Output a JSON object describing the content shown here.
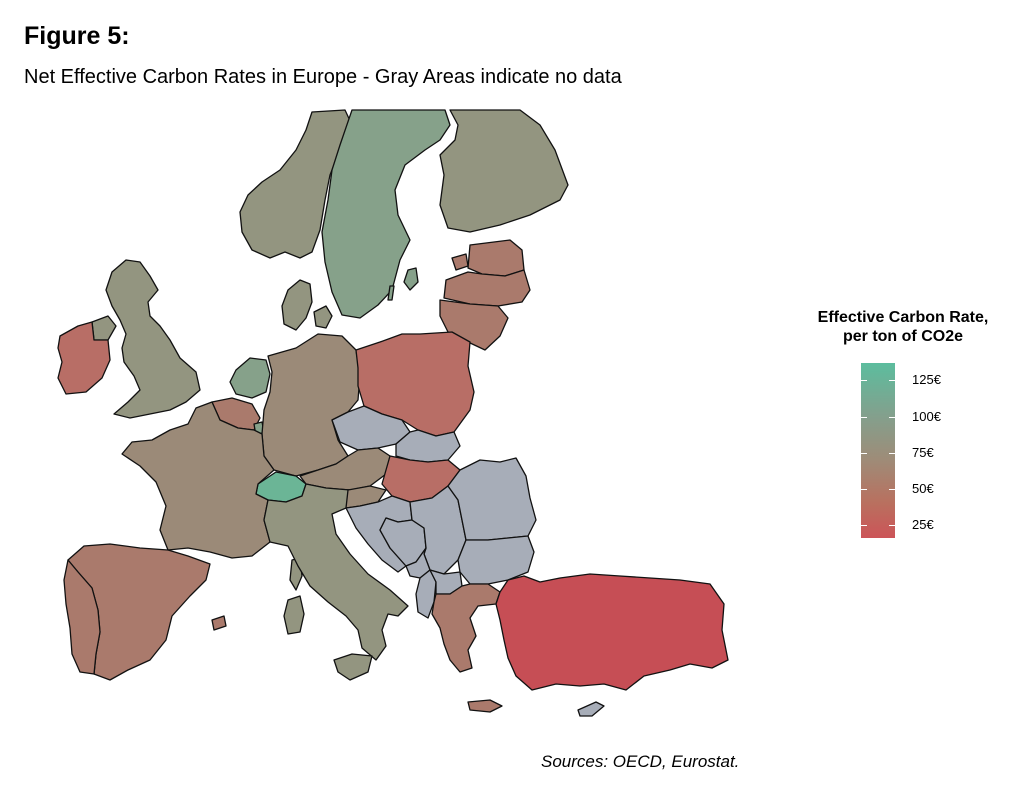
{
  "figure": {
    "title": "Figure 5:",
    "subtitle": "Net Effective Carbon Rates in Europe - Gray Areas indicate no data",
    "source": "Sources: OECD, Eurostat."
  },
  "legend": {
    "title_line1": "Effective Carbon Rate,",
    "title_line2": "per ton of CO2e",
    "ticks": [
      {
        "label": "125€",
        "value": 125
      },
      {
        "label": "100€",
        "value": 100
      },
      {
        "label": "75€",
        "value": 75
      },
      {
        "label": "50€",
        "value": 50
      },
      {
        "label": "25€",
        "value": 25
      }
    ],
    "scale_colors": {
      "high": "#5cbd9e",
      "mid_high": "#83a08d",
      "mid": "#9e8c78",
      "mid_low": "#b9705f",
      "low": "#cc5458"
    },
    "no_data_color": "#a7adb8"
  },
  "colors": {
    "teal": "#6bb596",
    "green_gray": "#86a18a",
    "olive_gray": "#939580",
    "taupe": "#9b8a78",
    "rose_brown": "#aa7a6c",
    "dusty_red": "#b86e66",
    "red": "#c64e55",
    "gray": "#a7adb8"
  },
  "map_regions": [
    {
      "id": "norway",
      "color": "#939580"
    },
    {
      "id": "sweden",
      "color": "#86a18a"
    },
    {
      "id": "finland",
      "color": "#939580"
    },
    {
      "id": "estonia",
      "color": "#aa7a6c"
    },
    {
      "id": "latvia",
      "color": "#aa7a6c"
    },
    {
      "id": "lithuania",
      "color": "#aa7a6c"
    },
    {
      "id": "denmark",
      "color": "#939580"
    },
    {
      "id": "uk",
      "color": "#939580"
    },
    {
      "id": "ireland",
      "color": "#b86e66"
    },
    {
      "id": "netherlands",
      "color": "#86a18a"
    },
    {
      "id": "belgium",
      "color": "#aa7a6c"
    },
    {
      "id": "luxembourg",
      "color": "#86a18a"
    },
    {
      "id": "germany",
      "color": "#9b8a78"
    },
    {
      "id": "poland",
      "color": "#b86e66"
    },
    {
      "id": "czechia",
      "color": "#a7adb8"
    },
    {
      "id": "slovakia",
      "color": "#a7adb8"
    },
    {
      "id": "austria",
      "color": "#9b8a78"
    },
    {
      "id": "hungary",
      "color": "#b86e66"
    },
    {
      "id": "switzerland",
      "color": "#6bb596"
    },
    {
      "id": "france",
      "color": "#9b8a78"
    },
    {
      "id": "spain",
      "color": "#aa7a6c"
    },
    {
      "id": "portugal",
      "color": "#aa7a6c"
    },
    {
      "id": "italy",
      "color": "#939580"
    },
    {
      "id": "slovenia",
      "color": "#9b8a78"
    },
    {
      "id": "croatia",
      "color": "#a7adb8"
    },
    {
      "id": "bosnia",
      "color": "#a7adb8"
    },
    {
      "id": "serbia",
      "color": "#a7adb8"
    },
    {
      "id": "montenegro",
      "color": "#a7adb8"
    },
    {
      "id": "albania",
      "color": "#a7adb8"
    },
    {
      "id": "north-macedonia",
      "color": "#a7adb8"
    },
    {
      "id": "romania",
      "color": "#a7adb8"
    },
    {
      "id": "bulgaria",
      "color": "#a7adb8"
    },
    {
      "id": "greece",
      "color": "#aa7a6c"
    },
    {
      "id": "turkey",
      "color": "#c64e55"
    },
    {
      "id": "cyprus",
      "color": "#a7adb8"
    },
    {
      "id": "corsica",
      "color": "#939580"
    },
    {
      "id": "sardinia",
      "color": "#939580"
    },
    {
      "id": "sicily",
      "color": "#939580"
    },
    {
      "id": "crete",
      "color": "#aa7a6c"
    },
    {
      "id": "balearic",
      "color": "#aa7a6c"
    },
    {
      "id": "northern-ireland",
      "color": "#939580"
    },
    {
      "id": "gotland",
      "color": "#86a18a"
    },
    {
      "id": "oland",
      "color": "#86a18a"
    },
    {
      "id": "saaremaa",
      "color": "#aa7a6c"
    }
  ]
}
